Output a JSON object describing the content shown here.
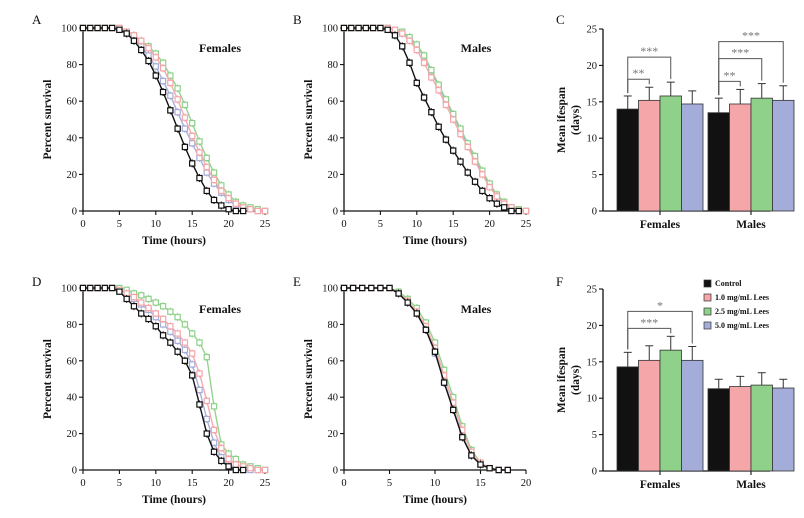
{
  "colors": {
    "Control": "#111111",
    "1.0 mg/mL Lees": "#f4a6a9",
    "2.5 mg/mL Lees": "#8fd18a",
    "5.0 mg/mL Lees": "#a4acd9"
  },
  "chart_data": [
    {
      "panel": "A",
      "type": "line",
      "label": "Females",
      "xlabel": "Time (hours)",
      "ylabel": "Percent survival",
      "xlim": [
        0,
        25
      ],
      "ylim": [
        0,
        100
      ],
      "xticks": [
        "0",
        "5",
        "10",
        "15",
        "20",
        "25"
      ],
      "yticks": [
        "0",
        "20",
        "40",
        "60",
        "80",
        "100"
      ],
      "series": [
        {
          "color": "#111111",
          "x": [
            0,
            1,
            2,
            3,
            4,
            5,
            6,
            7,
            8,
            9,
            10,
            11,
            12,
            13,
            14,
            15,
            16,
            17,
            18,
            19,
            20,
            21,
            22
          ],
          "y": [
            100,
            100,
            100,
            100,
            100,
            99,
            97,
            93,
            88,
            82,
            74,
            65,
            55,
            45,
            35,
            26,
            18,
            11,
            6,
            3,
            1,
            0,
            0
          ]
        },
        {
          "color": "#f4a6a9",
          "x": [
            0,
            1,
            2,
            3,
            4,
            5,
            6,
            7,
            8,
            9,
            10,
            11,
            12,
            13,
            14,
            15,
            16,
            17,
            18,
            19,
            20,
            21,
            22,
            23,
            24,
            25
          ],
          "y": [
            100,
            100,
            100,
            100,
            100,
            100,
            98,
            96,
            93,
            89,
            84,
            78,
            70,
            61,
            51,
            41,
            32,
            24,
            17,
            11,
            7,
            4,
            2,
            1,
            0,
            0
          ]
        },
        {
          "color": "#8fd18a",
          "x": [
            0,
            1,
            2,
            3,
            4,
            5,
            6,
            7,
            8,
            9,
            10,
            11,
            12,
            13,
            14,
            15,
            16,
            17,
            18,
            19,
            20,
            21,
            22,
            23,
            24,
            25
          ],
          "y": [
            100,
            100,
            100,
            100,
            100,
            100,
            98,
            96,
            93,
            90,
            86,
            81,
            74,
            67,
            58,
            48,
            38,
            29,
            21,
            14,
            9,
            5,
            3,
            2,
            1,
            0
          ]
        },
        {
          "color": "#a4acd9",
          "x": [
            0,
            1,
            2,
            3,
            4,
            5,
            6,
            7,
            8,
            9,
            10,
            11,
            12,
            13,
            14,
            15,
            16,
            17,
            18,
            19,
            20,
            21,
            22,
            23,
            24,
            25
          ],
          "y": [
            100,
            100,
            100,
            100,
            100,
            99,
            97,
            94,
            90,
            85,
            79,
            71,
            63,
            54,
            45,
            37,
            29,
            21,
            15,
            10,
            6,
            3,
            2,
            1,
            0,
            0
          ]
        }
      ]
    },
    {
      "panel": "B",
      "type": "line",
      "label": "Males",
      "xlabel": "Time (hours)",
      "ylabel": "Percent survival",
      "xlim": [
        0,
        25
      ],
      "ylim": [
        0,
        100
      ],
      "xticks": [
        "0",
        "5",
        "10",
        "15",
        "20",
        "25"
      ],
      "yticks": [
        "0",
        "20",
        "40",
        "60",
        "80",
        "100"
      ],
      "series": [
        {
          "color": "#111111",
          "x": [
            0,
            1,
            2,
            3,
            4,
            5,
            6,
            7,
            8,
            9,
            10,
            11,
            12,
            13,
            14,
            15,
            16,
            17,
            18,
            19,
            20,
            21,
            22,
            23,
            24
          ],
          "y": [
            100,
            100,
            100,
            100,
            100,
            100,
            99,
            96,
            90,
            81,
            70,
            62,
            54,
            46,
            39,
            33,
            27,
            21,
            16,
            11,
            7,
            4,
            2,
            0,
            0
          ]
        },
        {
          "color": "#f4a6a9",
          "x": [
            0,
            1,
            2,
            3,
            4,
            5,
            6,
            7,
            8,
            9,
            10,
            11,
            12,
            13,
            14,
            15,
            16,
            17,
            18,
            19,
            20,
            21,
            22,
            23,
            24,
            25
          ],
          "y": [
            100,
            100,
            100,
            100,
            100,
            100,
            100,
            99,
            97,
            93,
            88,
            81,
            73,
            66,
            58,
            50,
            42,
            35,
            27,
            20,
            13,
            8,
            4,
            2,
            0,
            0
          ]
        },
        {
          "color": "#8fd18a",
          "x": [
            0,
            1,
            2,
            3,
            4,
            5,
            6,
            7,
            8,
            9,
            10,
            11,
            12,
            13,
            14,
            15,
            16,
            17,
            18,
            19,
            20,
            21,
            22,
            23,
            24,
            25
          ],
          "y": [
            100,
            100,
            100,
            100,
            100,
            100,
            100,
            99,
            98,
            95,
            91,
            85,
            77,
            69,
            61,
            53,
            45,
            37,
            30,
            22,
            15,
            9,
            5,
            2,
            1,
            0
          ]
        },
        {
          "color": "#a4acd9",
          "x": [
            0,
            1,
            2,
            3,
            4,
            5,
            6,
            7,
            8,
            9,
            10,
            11,
            12,
            13,
            14,
            15,
            16,
            17,
            18,
            19,
            20,
            21,
            22,
            23,
            24,
            25
          ],
          "y": [
            100,
            100,
            100,
            100,
            100,
            100,
            100,
            99,
            97,
            94,
            90,
            84,
            76,
            68,
            60,
            52,
            44,
            36,
            28,
            21,
            14,
            8,
            4,
            2,
            0,
            0
          ]
        }
      ]
    },
    {
      "panel": "C",
      "type": "bar",
      "ylabel": "Mean ifespan\n(days)",
      "ylim": [
        0,
        25
      ],
      "yticks": [
        "0",
        "5",
        "10",
        "15",
        "20",
        "25"
      ],
      "categories": [
        "Females",
        "Males"
      ],
      "series": [
        {
          "color": "#111111",
          "values": [
            14.0,
            13.5
          ],
          "errors": [
            1.8,
            2.0
          ]
        },
        {
          "color": "#f4a6a9",
          "values": [
            15.2,
            14.7
          ],
          "errors": [
            1.8,
            2.0
          ]
        },
        {
          "color": "#8fd18a",
          "values": [
            15.8,
            15.5
          ],
          "errors": [
            1.9,
            2.0
          ]
        },
        {
          "color": "#a4acd9",
          "values": [
            14.7,
            15.2
          ],
          "errors": [
            1.8,
            2.0
          ]
        }
      ],
      "significance": [
        {
          "group": 0,
          "from": 0,
          "to": 1,
          "label": "**"
        },
        {
          "group": 0,
          "from": 0,
          "to": 2,
          "label": "***"
        },
        {
          "group": 1,
          "from": 0,
          "to": 1,
          "label": "**"
        },
        {
          "group": 1,
          "from": 0,
          "to": 2,
          "label": "***"
        },
        {
          "group": 1,
          "from": 0,
          "to": 3,
          "label": "***"
        }
      ]
    },
    {
      "panel": "D",
      "type": "line",
      "label": "Females",
      "xlabel": "Time (hours)",
      "ylabel": "Percent survival",
      "xlim": [
        0,
        25
      ],
      "ylim": [
        0,
        100
      ],
      "xticks": [
        "0",
        "5",
        "10",
        "15",
        "20",
        "25"
      ],
      "yticks": [
        "0",
        "20",
        "40",
        "60",
        "80",
        "100"
      ],
      "series": [
        {
          "color": "#111111",
          "x": [
            0,
            1,
            2,
            3,
            4,
            5,
            6,
            7,
            8,
            9,
            10,
            11,
            12,
            13,
            14,
            15,
            16,
            17,
            18,
            19,
            20,
            21,
            22
          ],
          "y": [
            100,
            100,
            100,
            100,
            100,
            98,
            94,
            90,
            86,
            83,
            79,
            74,
            70,
            65,
            60,
            52,
            36,
            20,
            10,
            5,
            2,
            0,
            0
          ]
        },
        {
          "color": "#f4a6a9",
          "x": [
            0,
            1,
            2,
            3,
            4,
            5,
            6,
            7,
            8,
            9,
            10,
            11,
            12,
            13,
            14,
            15,
            16,
            17,
            18,
            19,
            20,
            21,
            22,
            23,
            24,
            25
          ],
          "y": [
            100,
            100,
            100,
            100,
            100,
            99,
            97,
            95,
            92,
            89,
            86,
            83,
            79,
            75,
            70,
            64,
            53,
            38,
            22,
            12,
            6,
            3,
            2,
            1,
            0,
            0
          ]
        },
        {
          "color": "#8fd18a",
          "x": [
            0,
            1,
            2,
            3,
            4,
            5,
            6,
            7,
            8,
            9,
            10,
            11,
            12,
            13,
            14,
            15,
            16,
            17,
            18,
            19,
            20,
            21,
            22,
            23,
            24,
            25
          ],
          "y": [
            100,
            100,
            100,
            100,
            100,
            100,
            99,
            97,
            96,
            94,
            92,
            90,
            87,
            84,
            80,
            75,
            70,
            62,
            35,
            14,
            9,
            6,
            3,
            2,
            1,
            0
          ]
        },
        {
          "color": "#a4acd9",
          "x": [
            0,
            1,
            2,
            3,
            4,
            5,
            6,
            7,
            8,
            9,
            10,
            11,
            12,
            13,
            14,
            15,
            16,
            17,
            18,
            19,
            20,
            21,
            22,
            23,
            24,
            25
          ],
          "y": [
            100,
            100,
            100,
            100,
            100,
            99,
            97,
            94,
            91,
            88,
            84,
            80,
            76,
            71,
            66,
            58,
            44,
            28,
            15,
            7,
            3,
            1,
            0,
            0,
            0,
            0
          ]
        }
      ]
    },
    {
      "panel": "E",
      "type": "line",
      "label": "Males",
      "xlabel": "Time (hours)",
      "ylabel": "Percent survival",
      "xlim": [
        0,
        20
      ],
      "ylim": [
        0,
        100
      ],
      "xticks": [
        "0",
        "5",
        "10",
        "15",
        "20"
      ],
      "yticks": [
        "0",
        "20",
        "40",
        "60",
        "80",
        "100"
      ],
      "series": [
        {
          "color": "#111111",
          "x": [
            0,
            1,
            2,
            3,
            4,
            5,
            6,
            7,
            8,
            9,
            10,
            11,
            12,
            13,
            14,
            15,
            16,
            17,
            18
          ],
          "y": [
            100,
            100,
            100,
            100,
            100,
            100,
            97,
            92,
            86,
            77,
            65,
            48,
            33,
            18,
            8,
            3,
            1,
            0,
            0
          ]
        },
        {
          "color": "#f4a6a9",
          "x": [
            0,
            1,
            2,
            3,
            4,
            5,
            6,
            7,
            8,
            9,
            10,
            11,
            12,
            13,
            14,
            15,
            16,
            17,
            18
          ],
          "y": [
            100,
            100,
            100,
            100,
            100,
            100,
            97,
            93,
            87,
            79,
            67,
            52,
            37,
            22,
            10,
            4,
            1,
            0,
            0
          ]
        },
        {
          "color": "#8fd18a",
          "x": [
            0,
            1,
            2,
            3,
            4,
            5,
            6,
            7,
            8,
            9,
            10,
            11,
            12,
            13,
            14,
            15,
            16,
            17,
            18
          ],
          "y": [
            100,
            100,
            100,
            100,
            100,
            100,
            98,
            94,
            89,
            81,
            70,
            55,
            40,
            24,
            11,
            4,
            1,
            0,
            0
          ]
        },
        {
          "color": "#a4acd9",
          "x": [
            0,
            1,
            2,
            3,
            4,
            5,
            6,
            7,
            8,
            9,
            10,
            11,
            12,
            13,
            14,
            15,
            16,
            17,
            18
          ],
          "y": [
            100,
            100,
            100,
            100,
            100,
            100,
            97,
            92,
            86,
            77,
            64,
            49,
            34,
            19,
            8,
            3,
            1,
            0,
            0
          ]
        }
      ]
    },
    {
      "panel": "F",
      "type": "bar",
      "ylabel": "Mean ifespan\n(days)",
      "ylim": [
        0,
        25
      ],
      "yticks": [
        "0",
        "5",
        "10",
        "15",
        "20",
        "25"
      ],
      "categories": [
        "Females",
        "Males"
      ],
      "legend": [
        "Control",
        "1.0 mg/mL Lees",
        "2.5 mg/mL Lees",
        "5.0 mg/mL Lees"
      ],
      "series": [
        {
          "name": "Control",
          "color": "#111111",
          "values": [
            14.3,
            11.3
          ],
          "errors": [
            2.0,
            1.3
          ]
        },
        {
          "name": "1.0 mg/mL Lees",
          "color": "#f4a6a9",
          "values": [
            15.2,
            11.6
          ],
          "errors": [
            2.0,
            1.4
          ]
        },
        {
          "name": "2.5 mg/mL Lees",
          "color": "#8fd18a",
          "values": [
            16.6,
            11.8
          ],
          "errors": [
            1.9,
            1.7
          ]
        },
        {
          "name": "5.0 mg/mL Lees",
          "color": "#a4acd9",
          "values": [
            15.2,
            11.4
          ],
          "errors": [
            1.9,
            1.2
          ]
        }
      ],
      "significance": [
        {
          "group": 0,
          "from": 0,
          "to": 2,
          "label": "***"
        },
        {
          "group": 0,
          "from": 0,
          "to": 3,
          "label": "*"
        }
      ]
    }
  ]
}
